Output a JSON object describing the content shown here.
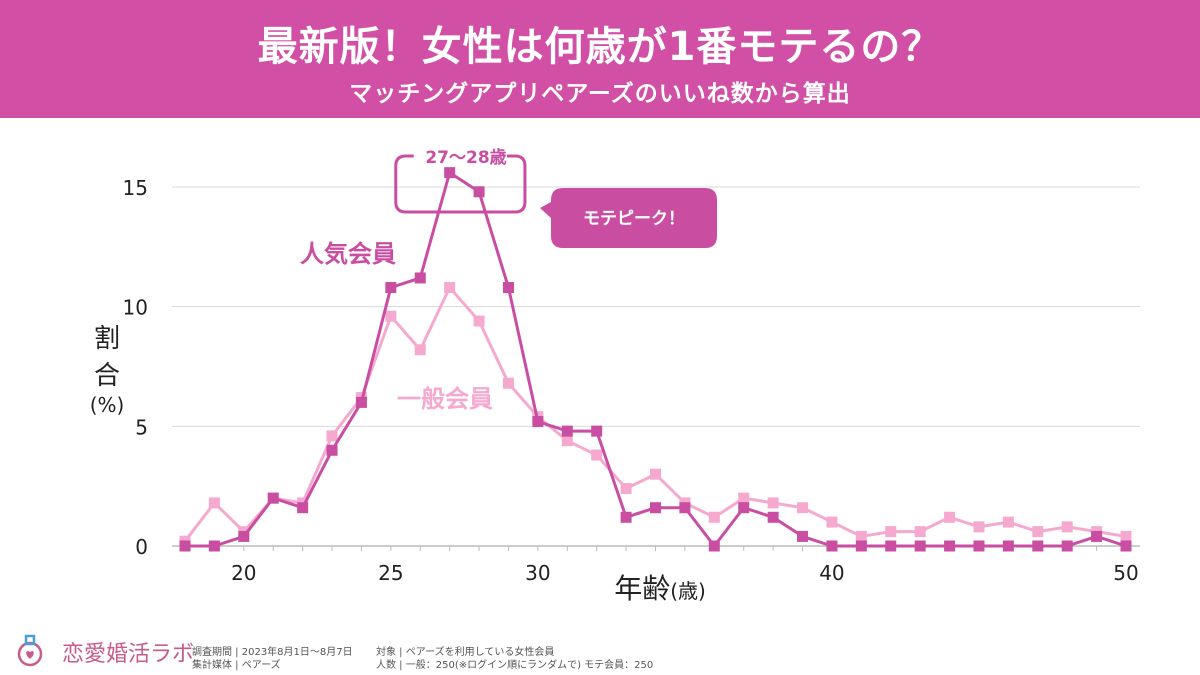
{
  "header": {
    "title": "最新版！女性は何歳が1番モテるの？",
    "subtitle": "マッチングアプリペアーズのいいね数から算出"
  },
  "colors": {
    "header_bg": "#d24fa6",
    "popular": "#c94ea2",
    "general": "#f5a9cf",
    "grid": "#d9d9d9"
  },
  "annotations": {
    "peak_label": "27〜28歳",
    "callout": "モテピーク！"
  },
  "chart_data": {
    "type": "line",
    "xlabel_main": "年齢",
    "xlabel_unit": "(歳)",
    "ylabel_lines": [
      "割",
      "合"
    ],
    "ylabel_unit": "(%)",
    "xlim": [
      18,
      50
    ],
    "ylim": [
      0,
      15
    ],
    "xticks": [
      20,
      25,
      30,
      40,
      50
    ],
    "yticks": [
      0,
      5,
      10,
      15
    ],
    "grid": true,
    "series": [
      {
        "name": "人気会員",
        "x": [
          18,
          19,
          20,
          21,
          22,
          23,
          24,
          25,
          26,
          27,
          28,
          29,
          30,
          31,
          32,
          33,
          34,
          35,
          36,
          37,
          38,
          39,
          40,
          41,
          42,
          43,
          44,
          45,
          46,
          47,
          48,
          49,
          50
        ],
        "values": [
          0,
          0,
          0.4,
          2.0,
          1.6,
          4.0,
          6.0,
          10.8,
          11.2,
          15.6,
          14.8,
          10.8,
          5.2,
          4.8,
          4.8,
          1.2,
          1.6,
          1.6,
          0,
          1.6,
          1.2,
          0.4,
          0,
          0,
          0,
          0,
          0,
          0,
          0,
          0,
          0,
          0.4,
          0
        ]
      },
      {
        "name": "一般会員",
        "x": [
          18,
          19,
          20,
          21,
          22,
          23,
          24,
          25,
          26,
          27,
          28,
          29,
          30,
          31,
          32,
          33,
          34,
          35,
          36,
          37,
          38,
          39,
          40,
          41,
          42,
          43,
          44,
          45,
          46,
          47,
          48,
          49,
          50
        ],
        "values": [
          0.2,
          1.8,
          0.6,
          2.0,
          1.8,
          4.6,
          6.2,
          9.6,
          8.2,
          10.8,
          9.4,
          6.8,
          5.4,
          4.4,
          3.8,
          2.4,
          3.0,
          1.8,
          1.2,
          2.0,
          1.8,
          1.6,
          1.0,
          0.4,
          0.6,
          0.6,
          1.2,
          0.8,
          1.0,
          0.6,
          0.8,
          0.6,
          0.4
        ]
      }
    ]
  },
  "footer": {
    "logo_text": "恋愛婚活ラボ",
    "survey_period": "調査期間 | 2023年8月1日〜8月7日",
    "media": "集計媒体 | ペアーズ",
    "target": "対象 | ペアーズを利用している女性会員",
    "count": "人数 | 一般：250(※ログイン順にランダムで) モテ会員：250"
  }
}
